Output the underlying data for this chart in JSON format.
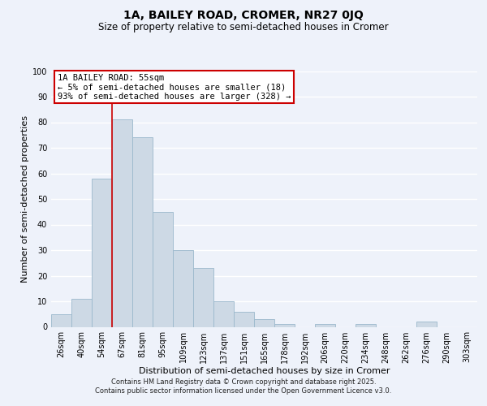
{
  "suptitle": "1A, BAILEY ROAD, CROMER, NR27 0JQ",
  "subtitle": "Size of property relative to semi-detached houses in Cromer",
  "xlabel": "Distribution of semi-detached houses by size in Cromer",
  "ylabel": "Number of semi-detached properties",
  "bar_labels": [
    "26sqm",
    "40sqm",
    "54sqm",
    "67sqm",
    "81sqm",
    "95sqm",
    "109sqm",
    "123sqm",
    "137sqm",
    "151sqm",
    "165sqm",
    "178sqm",
    "192sqm",
    "206sqm",
    "220sqm",
    "234sqm",
    "248sqm",
    "262sqm",
    "276sqm",
    "290sqm",
    "303sqm"
  ],
  "bar_values": [
    5,
    11,
    58,
    81,
    74,
    45,
    30,
    23,
    10,
    6,
    3,
    1,
    0,
    1,
    0,
    1,
    0,
    0,
    2,
    0,
    0
  ],
  "bar_color": "#cdd9e5",
  "bar_edge_color": "#9bb8cc",
  "ylim": [
    0,
    100
  ],
  "yticks": [
    0,
    10,
    20,
    30,
    40,
    50,
    60,
    70,
    80,
    90,
    100
  ],
  "property_line_label": "1A BAILEY ROAD: 55sqm",
  "annotation_line1": "← 5% of semi-detached houses are smaller (18)",
  "annotation_line2": "93% of semi-detached houses are larger (328) →",
  "box_color": "#ffffff",
  "box_edge_color": "#cc0000",
  "line_color": "#cc0000",
  "footer1": "Contains HM Land Registry data © Crown copyright and database right 2025.",
  "footer2": "Contains public sector information licensed under the Open Government Licence v3.0.",
  "background_color": "#eef2fa",
  "grid_color": "#ffffff",
  "title_fontsize": 10,
  "subtitle_fontsize": 8.5,
  "axis_label_fontsize": 8,
  "tick_fontsize": 7,
  "footer_fontsize": 6,
  "annotation_title_fontsize": 8,
  "annotation_body_fontsize": 7.5
}
